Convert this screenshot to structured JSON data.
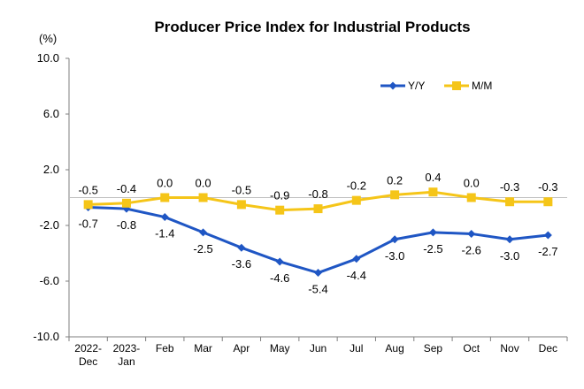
{
  "chart_data": {
    "type": "line",
    "title": "Producer Price Index for Industrial Products",
    "unit_label": "(%)",
    "xlabel": "",
    "ylabel": "",
    "categories": [
      "2022-\nDec",
      "2023-\nJan",
      "Feb",
      "Mar",
      "Apr",
      "May",
      "Jun",
      "Jul",
      "Aug",
      "Sep",
      "Oct",
      "Nov",
      "Dec"
    ],
    "ylim": [
      -10.0,
      10.0
    ],
    "yticks": [
      10.0,
      6.0,
      2.0,
      -2.0,
      -6.0,
      -10.0
    ],
    "ytick_labels": [
      "10.0",
      "6.0",
      "2.0",
      "-2.0",
      "-6.0",
      "-10.0"
    ],
    "grid": false,
    "legend_position": "top-right",
    "series": [
      {
        "name": "Y/Y",
        "color": "#1f56c4",
        "marker": "diamond",
        "values": [
          -0.7,
          -0.8,
          -1.4,
          -2.5,
          -3.6,
          -4.6,
          -5.4,
          -4.4,
          -3.0,
          -2.5,
          -2.6,
          -3.0,
          -2.7
        ],
        "labels": [
          "-0.7",
          "-0.8",
          "-1.4",
          "-2.5",
          "-3.6",
          "-4.6",
          "-5.4",
          "-4.4",
          "-3.0",
          "-2.5",
          "-2.6",
          "-3.0",
          "-2.7"
        ],
        "label_position": "below"
      },
      {
        "name": "M/M",
        "color": "#f5c518",
        "marker": "square",
        "values": [
          -0.5,
          -0.4,
          0.0,
          0.0,
          -0.5,
          -0.9,
          -0.8,
          -0.2,
          0.2,
          0.4,
          0.0,
          -0.3,
          -0.3
        ],
        "labels": [
          "-0.5",
          "-0.4",
          "0.0",
          "0.0",
          "-0.5",
          "-0.9",
          "-0.8",
          "-0.2",
          "0.2",
          "0.4",
          "0.0",
          "-0.3",
          "-0.3"
        ],
        "label_position": "above"
      }
    ]
  }
}
